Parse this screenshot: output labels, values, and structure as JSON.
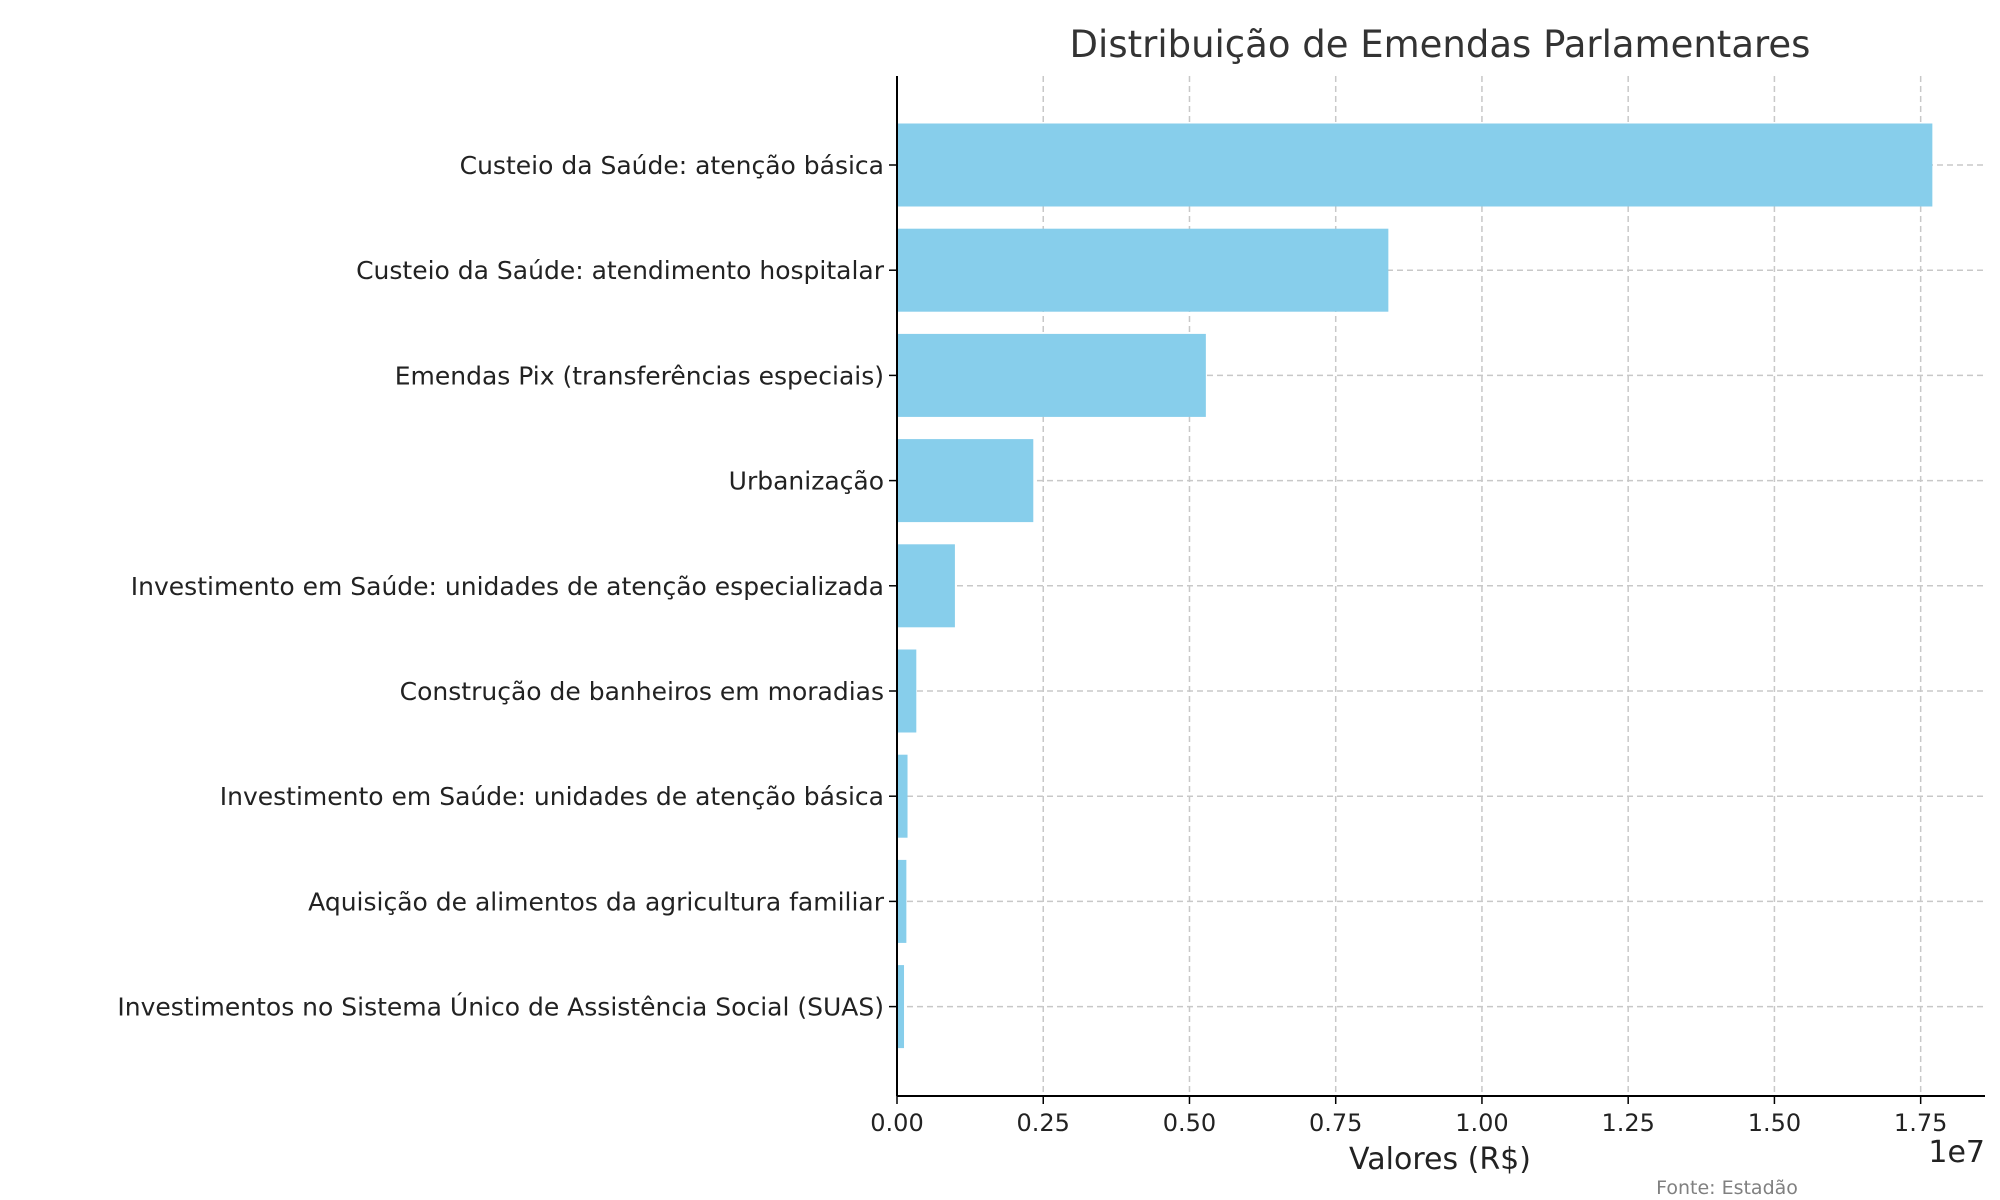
{
  "chart_data": {
    "type": "bar",
    "orientation": "horizontal",
    "title": "Distribuição de Emendas Parlamentares",
    "xlabel": "Valores (R$)",
    "ylabel": "",
    "x_offset_label": "1e7",
    "source_note": "Fonte: Estadão",
    "xlim": [
      0,
      18600000
    ],
    "xticks": [
      0,
      2500000,
      5000000,
      7500000,
      10000000,
      12500000,
      15000000,
      17500000
    ],
    "xtick_labels": [
      "0.00",
      "0.25",
      "0.50",
      "0.75",
      "1.00",
      "1.25",
      "1.50",
      "1.75"
    ],
    "grid": true,
    "bar_color": "#87CEEB",
    "categories": [
      "Custeio da Saúde: atenção básica",
      "Custeio da Saúde: atendimento hospitalar",
      "Emendas Pix (transferências especiais)",
      "Urbanização",
      "Investimento em Saúde: unidades de atenção especializada",
      "Construção de banheiros em moradias",
      "Investimento em Saúde: unidades de atenção básica",
      "Aquisição de alimentos da agricultura familiar",
      "Investimentos no Sistema Único de Assistência Social (SUAS)"
    ],
    "values": [
      17700000,
      8400000,
      5280000,
      2330000,
      990000,
      330000,
      180000,
      160000,
      120000
    ]
  }
}
